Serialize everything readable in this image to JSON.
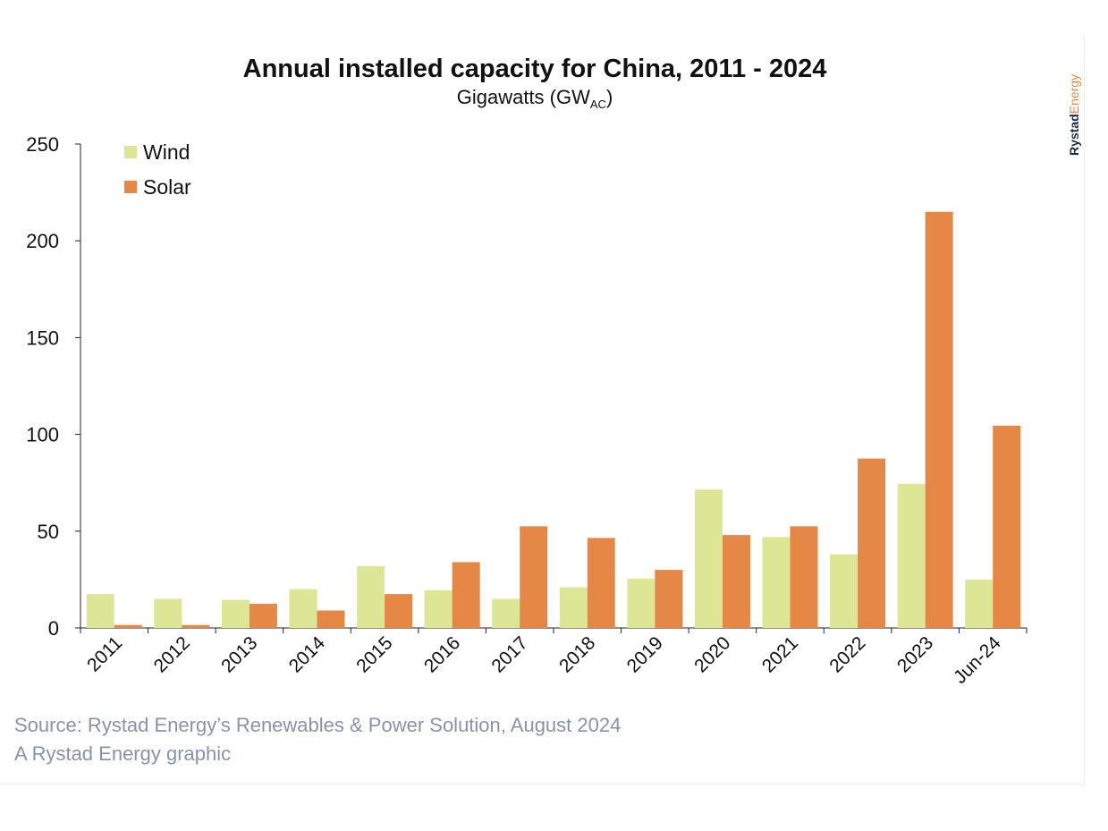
{
  "colors": {
    "wind": "#dce695",
    "solar": "#e58845",
    "axis": "#222222",
    "source": "#8794a8",
    "brand_dark": "#1b2a4a",
    "brand_accent": "#e58845"
  },
  "chart_data": {
    "type": "bar",
    "title": "Annual installed capacity for China, 2011 - 2024",
    "subtitle_main": "Gigawatts (GW",
    "subtitle_sub": "AC",
    "subtitle_end": ")",
    "xlabel": "",
    "ylabel": "",
    "ylim": [
      0,
      250
    ],
    "yticks": [
      0,
      50,
      100,
      150,
      200,
      250
    ],
    "categories": [
      "2011",
      "2012",
      "2013",
      "2014",
      "2015",
      "2016",
      "2017",
      "2018",
      "2019",
      "2020",
      "2021",
      "2022",
      "2023",
      "Jun-24"
    ],
    "series": [
      {
        "name": "Wind",
        "values": [
          17.5,
          15,
          14.5,
          20,
          32,
          19.5,
          15,
          21,
          25.5,
          71.5,
          47,
          38,
          74.5,
          25
        ]
      },
      {
        "name": "Solar",
        "values": [
          1.5,
          1.5,
          12.5,
          9,
          17.5,
          34,
          52.5,
          46.5,
          30,
          48,
          52.5,
          87.5,
          215,
          104.5
        ]
      }
    ],
    "legend": "top-left"
  },
  "brand": {
    "part1": "Rystad",
    "part2": "Energy"
  },
  "footer": {
    "source": "Source: Rystad Energy’s Renewables & Power Solution, August 2024",
    "credit": "A Rystad Energy graphic"
  }
}
